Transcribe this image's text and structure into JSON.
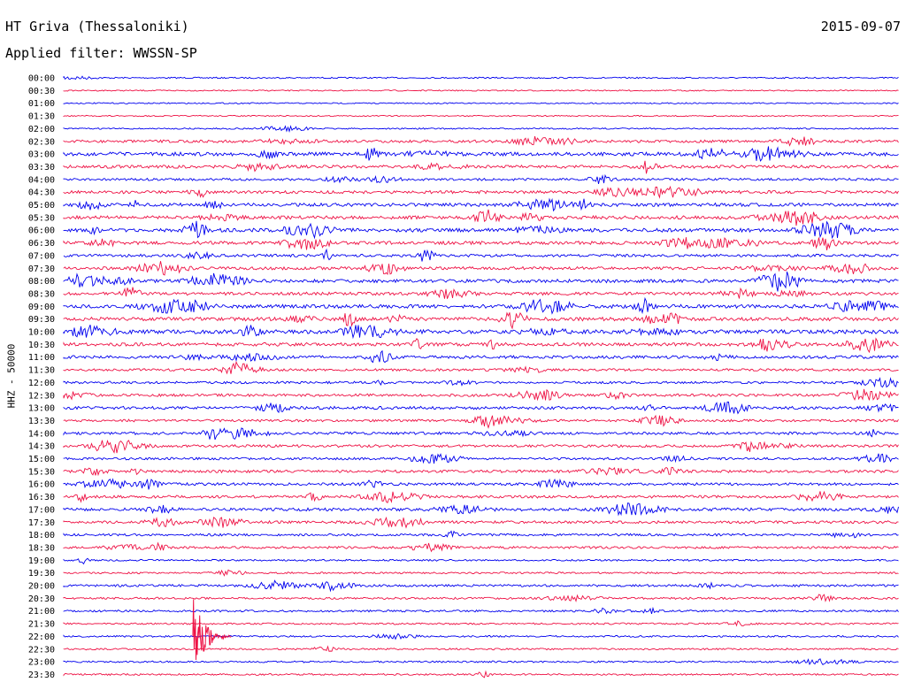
{
  "header": {
    "station": "HT Griva (Thessaloniki)",
    "date": "2015-09-07",
    "filter": "Applied filter: WWSSN-SP"
  },
  "channel_label": "HHZ - 50000",
  "colors": {
    "even": "#0000ee",
    "odd": "#ee1144"
  },
  "traces": [
    {
      "time": "00:00",
      "activity": 0.1
    },
    {
      "time": "00:30",
      "activity": 0.05
    },
    {
      "time": "01:00",
      "activity": 0.05
    },
    {
      "time": "01:30",
      "activity": 0.05
    },
    {
      "time": "02:00",
      "activity": 0.1
    },
    {
      "time": "02:30",
      "activity": 0.5
    },
    {
      "time": "03:00",
      "activity": 0.8
    },
    {
      "time": "03:30",
      "activity": 0.6
    },
    {
      "time": "04:00",
      "activity": 0.4
    },
    {
      "time": "04:30",
      "activity": 0.6
    },
    {
      "time": "05:00",
      "activity": 0.7
    },
    {
      "time": "05:30",
      "activity": 0.7
    },
    {
      "time": "06:00",
      "activity": 0.8
    },
    {
      "time": "06:30",
      "activity": 0.7
    },
    {
      "time": "07:00",
      "activity": 0.5
    },
    {
      "time": "07:30",
      "activity": 0.6
    },
    {
      "time": "08:00",
      "activity": 0.7
    },
    {
      "time": "08:30",
      "activity": 0.6
    },
    {
      "time": "09:00",
      "activity": 0.8
    },
    {
      "time": "09:30",
      "activity": 0.8
    },
    {
      "time": "10:00",
      "activity": 0.9
    },
    {
      "time": "10:30",
      "activity": 0.7
    },
    {
      "time": "11:00",
      "activity": 0.6
    },
    {
      "time": "11:30",
      "activity": 0.4
    },
    {
      "time": "12:00",
      "activity": 0.4
    },
    {
      "time": "12:30",
      "activity": 0.5
    },
    {
      "time": "13:00",
      "activity": 0.6
    },
    {
      "time": "13:30",
      "activity": 0.4
    },
    {
      "time": "14:00",
      "activity": 0.5
    },
    {
      "time": "14:30",
      "activity": 0.5
    },
    {
      "time": "15:00",
      "activity": 0.4
    },
    {
      "time": "15:30",
      "activity": 0.5
    },
    {
      "time": "16:00",
      "activity": 0.5
    },
    {
      "time": "16:30",
      "activity": 0.5
    },
    {
      "time": "17:00",
      "activity": 0.6
    },
    {
      "time": "17:30",
      "activity": 0.5
    },
    {
      "time": "18:00",
      "activity": 0.4
    },
    {
      "time": "18:30",
      "activity": 0.4
    },
    {
      "time": "19:00",
      "activity": 0.2
    },
    {
      "time": "19:30",
      "activity": 0.2
    },
    {
      "time": "20:00",
      "activity": 0.4
    },
    {
      "time": "20:30",
      "activity": 0.3
    },
    {
      "time": "21:00",
      "activity": 0.3
    },
    {
      "time": "21:30",
      "activity": 0.2
    },
    {
      "time": "22:00",
      "activity": 0.2
    },
    {
      "time": "22:30",
      "activity": 0.2
    },
    {
      "time": "23:00",
      "activity": 0.2
    },
    {
      "time": "23:30",
      "activity": 0.2
    }
  ]
}
